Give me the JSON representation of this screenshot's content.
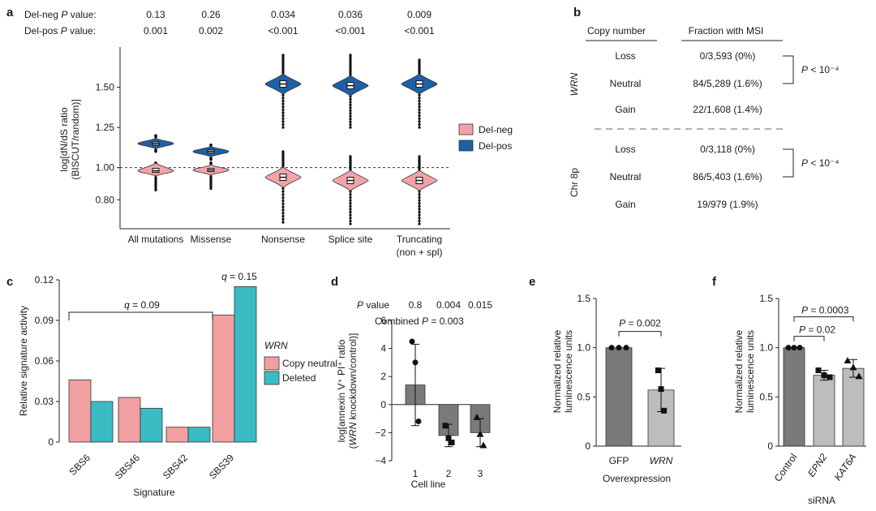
{
  "colors": {
    "del_neg_fill": "#f2a3a8",
    "del_pos_fill": "#1f5fa6",
    "copy_neutral_fill": "#f0a0a0",
    "deleted_fill": "#3bbcc4",
    "dark_bar": "#7a7a7a",
    "light_bar": "#bdbdbd",
    "point": "#111111"
  },
  "panels": {
    "a": {
      "letter": "a",
      "p_symbol": "P",
      "p_row_neg_prefix": "Del-neg ",
      "p_row_pos_prefix": "Del-pos ",
      "p_row_suffix": " value:",
      "ylabel_line1": "log[dN/dS ratio",
      "ylabel_line2": "(BISCUT/random)]"
    },
    "b": {
      "letter": "b",
      "col1_header": "Copy number",
      "col2_header": "Fraction with MSI",
      "groups": [
        {
          "label": "WRN",
          "rows": [
            {
              "copy_number": "Loss",
              "fraction": "0/3,593 (0%)"
            },
            {
              "copy_number": "Neutral",
              "fraction": "84/5,289 (1.6%)"
            },
            {
              "copy_number": "Gain",
              "fraction": "22/1,608 (1.4%)"
            }
          ],
          "bracket_label": "P < 10⁻⁴"
        },
        {
          "label": "Chr 8p",
          "rows": [
            {
              "copy_number": "Loss",
              "fraction": "0/3,118 (0%)"
            },
            {
              "copy_number": "Neutral",
              "fraction": "86/5,403 (1.6%)"
            },
            {
              "copy_number": "Gain",
              "fraction": "19/979 (1.9%)"
            }
          ],
          "bracket_label": "P < 10⁻⁴"
        }
      ]
    },
    "c": {
      "letter": "c",
      "ylabel": "Relative signature activity",
      "xlabel": "Signature"
    },
    "d": {
      "letter": "d",
      "p_symbol": "P",
      "p_value_suffix": " value",
      "combined_prefix": "Combined ",
      "combined_suffix": " = 0.003",
      "ylabel_line1": "log[annexin V⁺ PI⁺ ratio",
      "ylabel_line2_open": "(",
      "ylabel_line2_gene": "WRN",
      "ylabel_line2_rest": " knockdown/control)]",
      "xlabel": "Cell line"
    },
    "e": {
      "letter": "e",
      "ylabel_line1": "Normalized relative",
      "ylabel_line2": "luminescence units",
      "xlabel": "Overexpression"
    },
    "f": {
      "letter": "f",
      "ylabel_line1": "Normalized relative",
      "ylabel_line2": "luminescence units",
      "xlabel": "siRNA"
    }
  },
  "chart_data": [
    {
      "panel": "a",
      "type": "violin",
      "categories": [
        "All mutations",
        "Missense",
        "Nonsense",
        "Splice site",
        "Truncating (non + spl)"
      ],
      "series": [
        {
          "name": "Del-neg",
          "medians": [
            0.98,
            0.985,
            0.94,
            0.92,
            0.92
          ],
          "q1": [
            0.97,
            0.975,
            0.92,
            0.9,
            0.9
          ],
          "q3": [
            0.995,
            0.995,
            0.96,
            0.94,
            0.94
          ],
          "min": [
            0.86,
            0.87,
            0.66,
            0.65,
            0.65
          ],
          "max": [
            1.03,
            1.03,
            1.1,
            1.07,
            1.07
          ]
        },
        {
          "name": "Del-pos",
          "medians": [
            1.15,
            1.1,
            1.52,
            1.51,
            1.52
          ],
          "q1": [
            1.14,
            1.09,
            1.5,
            1.49,
            1.5
          ],
          "q3": [
            1.16,
            1.11,
            1.54,
            1.53,
            1.54
          ],
          "min": [
            1.1,
            1.05,
            1.25,
            1.25,
            1.25
          ],
          "max": [
            1.2,
            1.14,
            1.7,
            1.7,
            1.67
          ]
        }
      ],
      "p_values_del_neg": [
        "0.13",
        "0.26",
        "0.034",
        "0.036",
        "0.009"
      ],
      "p_values_del_pos": [
        "0.001",
        "0.002",
        "<0.001",
        "<0.001",
        "<0.001"
      ],
      "reference_line": 1.0,
      "yticks": [
        "0.80",
        "1.00",
        "1.25",
        "1.50"
      ],
      "ylim": [
        0.62,
        1.75
      ],
      "legend": [
        "Del-neg",
        "Del-pos"
      ],
      "legend_position": "right"
    },
    {
      "panel": "c",
      "type": "bar",
      "categories": [
        "SBS6",
        "SBS46",
        "SBS42",
        "SBS39"
      ],
      "series": [
        {
          "name": "Copy neutral",
          "values": [
            0.046,
            0.033,
            0.011,
            0.094
          ]
        },
        {
          "name": "Deleted",
          "values": [
            0.03,
            0.025,
            0.011,
            0.115
          ]
        }
      ],
      "yticks": [
        "0",
        "0.03",
        "0.06",
        "0.09",
        "0.12"
      ],
      "ylim": [
        0,
        0.12
      ],
      "legend_title": "WRN",
      "legend_position": "right",
      "annotations": [
        "q = 0.09",
        "q = 0.15"
      ]
    },
    {
      "panel": "d",
      "type": "bar",
      "categories": [
        "1",
        "2",
        "3"
      ],
      "values": [
        1.4,
        -2.2,
        -2.0
      ],
      "error": [
        2.9,
        0.8,
        1.0
      ],
      "points": [
        [
          4.5,
          3.0,
          -1.2
        ],
        [
          -1.5,
          -2.4,
          -2.7
        ],
        [
          -0.9,
          -2.1,
          -2.9
        ]
      ],
      "point_shapes": [
        "circle",
        "square",
        "triangle"
      ],
      "p_values": [
        "0.8",
        "0.004",
        "0.015"
      ],
      "yticks": [
        "−4",
        "−2",
        "0",
        "2",
        "4",
        "6"
      ],
      "ylim": [
        -4,
        6
      ]
    },
    {
      "panel": "e",
      "type": "bar",
      "categories": [
        "GFP",
        "WRN"
      ],
      "values": [
        1.0,
        0.57
      ],
      "error": [
        0,
        0.22
      ],
      "points": [
        [
          1.0,
          1.0,
          1.0
        ],
        [
          0.77,
          0.58,
          0.36
        ]
      ],
      "yticks": [
        "0",
        "0.5",
        "1.0",
        "1.5"
      ],
      "ylim": [
        0,
        1.5
      ],
      "annotations": [
        "P = 0.002"
      ]
    },
    {
      "panel": "f",
      "type": "bar",
      "categories": [
        "Control",
        "EPN2",
        "KAT6A"
      ],
      "values": [
        1.0,
        0.72,
        0.79
      ],
      "error": [
        0,
        0.05,
        0.09
      ],
      "points": [
        [
          1.0,
          1.0,
          1.0
        ],
        [
          0.77,
          0.72,
          0.7
        ],
        [
          0.87,
          0.8,
          0.71
        ]
      ],
      "yticks": [
        "0",
        "0.5",
        "1.0",
        "1.5"
      ],
      "ylim": [
        0,
        1.5
      ],
      "annotations": [
        "P = 0.02",
        "P = 0.0003"
      ]
    }
  ]
}
